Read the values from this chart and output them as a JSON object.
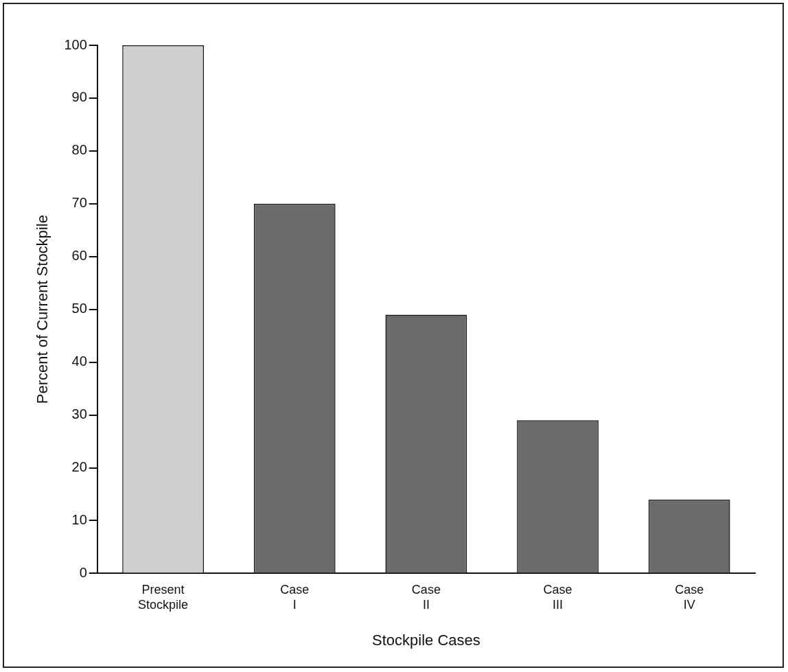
{
  "chart_data": {
    "type": "bar",
    "xlabel": "Stockpile Cases",
    "ylabel": "Percent of Current Stockpile",
    "categories": [
      "Present Stockpile",
      "Case I",
      "Case II",
      "Case III",
      "Case IV"
    ],
    "values": [
      100,
      70,
      49,
      29,
      14
    ],
    "colors": [
      "#cfcfcf",
      "#6b6b6b",
      "#6b6b6b",
      "#6b6b6b",
      "#6b6b6b"
    ],
    "ylim": [
      0,
      100
    ],
    "yticks": [
      0,
      10,
      20,
      30,
      40,
      50,
      60,
      70,
      80,
      90,
      100
    ],
    "grid": false,
    "legend": false
  }
}
